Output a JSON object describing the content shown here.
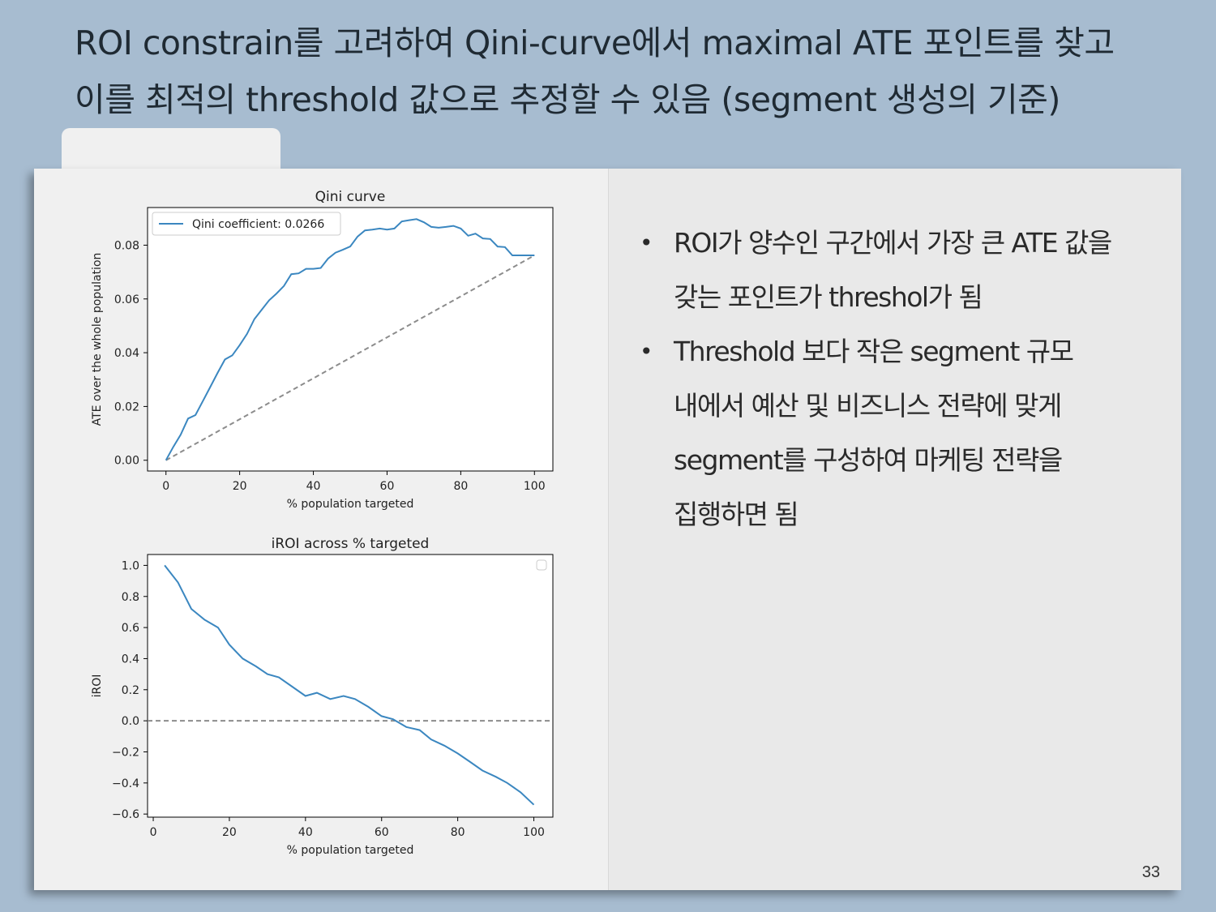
{
  "slide": {
    "title_line1": "ROI constrain를 고려하여 Qini-curve에서 maximal ATE 포인트를 찾고",
    "title_line2": "이를 최적의 threshold 값으로 추정할 수 있음 (segment 생성의 기준)",
    "page_number": "33"
  },
  "bullets": [
    {
      "line1": "ROI가 양수인 구간에서 가장 큰 ATE 값을",
      "line2": "갖는 포인트가 threshol가 됨"
    },
    {
      "line1": "Threshold 보다 작은 segment 규모",
      "line2": "내에서 예산 및 비즈니스 전략에 맞게",
      "line3": "segment를 구성하여 마케팅 전략을",
      "line4": "집행하면 됨"
    }
  ],
  "colors": {
    "series": "#3b87c0",
    "baseline": "#8c8c8c",
    "background": "#a7bcd0"
  },
  "chart_data": [
    {
      "type": "line",
      "title": "Qini curve",
      "xlabel": "% population targeted",
      "ylabel": "ATE over the whole population",
      "xlim": [
        -5,
        105
      ],
      "ylim": [
        -0.004,
        0.094
      ],
      "xticks": [
        "0",
        "20",
        "40",
        "60",
        "80",
        "100"
      ],
      "xtick_values": [
        0,
        20,
        40,
        60,
        80,
        100
      ],
      "yticks": [
        "0.00",
        "0.02",
        "0.04",
        "0.06",
        "0.08"
      ],
      "ytick_values": [
        0,
        0.02,
        0.04,
        0.06,
        0.08
      ],
      "legend": "top-left",
      "legend_label": "Qini coefficient: 0.0266",
      "series": [
        {
          "name": "Qini coefficient: 0.0266",
          "x": [
            0,
            2,
            4,
            6,
            8,
            10,
            12,
            14,
            16,
            18,
            20,
            22,
            24,
            26,
            28,
            30,
            32,
            34,
            36,
            38,
            40,
            42,
            44,
            46,
            48,
            50,
            52,
            54,
            56,
            58,
            60,
            62,
            64,
            66,
            68,
            70,
            72,
            74,
            76,
            78,
            80,
            82,
            84,
            86,
            88,
            90,
            92,
            94,
            96,
            98,
            100
          ],
          "y": [
            0.0,
            0.005,
            0.0095,
            0.0155,
            0.0168,
            0.022,
            0.0272,
            0.0325,
            0.0375,
            0.039,
            0.0428,
            0.047,
            0.0525,
            0.056,
            0.0595,
            0.062,
            0.0648,
            0.0692,
            0.0695,
            0.0712,
            0.0712,
            0.0715,
            0.075,
            0.0772,
            0.0783,
            0.0795,
            0.0832,
            0.0855,
            0.0858,
            0.0862,
            0.0858,
            0.0862,
            0.0888,
            0.0893,
            0.0897,
            0.0885,
            0.0868,
            0.0865,
            0.0868,
            0.0872,
            0.0862,
            0.0835,
            0.0843,
            0.0825,
            0.0823,
            0.0795,
            0.0793,
            0.0762,
            0.0762,
            0.0762,
            0.0762
          ]
        }
      ],
      "baseline": {
        "x": [
          0,
          100
        ],
        "y": [
          0,
          0.0762
        ]
      }
    },
    {
      "type": "line",
      "title": "iROI across % targeted",
      "xlabel": "% population targeted",
      "ylabel": "iROI",
      "xlim": [
        -1.5,
        105
      ],
      "ylim": [
        -0.62,
        1.07
      ],
      "xticks": [
        "0",
        "20",
        "40",
        "60",
        "80",
        "100"
      ],
      "xtick_values": [
        0,
        20,
        40,
        60,
        80,
        100
      ],
      "yticks": [
        "1.0",
        "0.8",
        "0.6",
        "0.4",
        "0.2",
        "0.0",
        "−0.2",
        "−0.4",
        "−0.6"
      ],
      "ytick_values": [
        1.0,
        0.8,
        0.6,
        0.4,
        0.2,
        0.0,
        -0.2,
        -0.4,
        -0.6
      ],
      "legend": "top-right (empty)",
      "series": [
        {
          "name": "",
          "x": [
            3,
            6.5,
            10,
            13.5,
            17,
            20,
            23.5,
            27,
            30,
            33,
            36.5,
            40,
            43,
            46.5,
            50,
            53,
            56.5,
            60,
            63,
            66.5,
            70,
            73,
            76.5,
            80,
            83,
            86.5,
            90,
            93,
            96.5,
            100
          ],
          "y": [
            1.0,
            0.89,
            0.72,
            0.65,
            0.6,
            0.49,
            0.4,
            0.35,
            0.3,
            0.28,
            0.22,
            0.16,
            0.18,
            0.14,
            0.16,
            0.14,
            0.09,
            0.03,
            0.01,
            -0.04,
            -0.06,
            -0.12,
            -0.16,
            -0.21,
            -0.26,
            -0.32,
            -0.36,
            -0.4,
            -0.46,
            -0.54
          ]
        }
      ],
      "baseline": {
        "x": [
          -1.5,
          105
        ],
        "y": [
          0,
          0
        ]
      }
    }
  ]
}
